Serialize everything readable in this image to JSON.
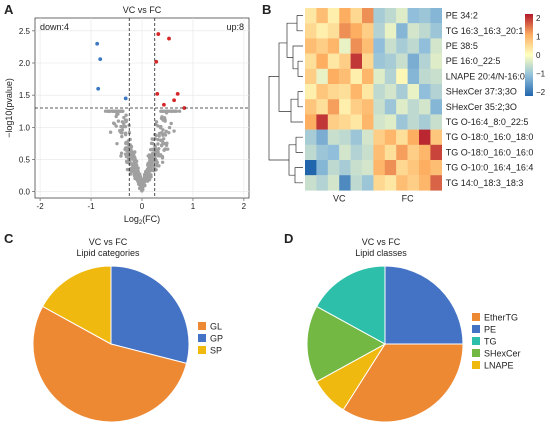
{
  "panels": [
    "A",
    "B",
    "C",
    "D"
  ],
  "chart_data": [
    {
      "type": "scatter",
      "panel": "A",
      "title": "VC vs FC",
      "xlabel": "Log2(FC)",
      "ylabel": "−log10(pvalue)",
      "xlim": [
        -2.1,
        2.1
      ],
      "ylim": [
        -0.1,
        2.7
      ],
      "xticks": [
        -2,
        -1,
        0,
        1,
        2
      ],
      "yticks": [
        0.0,
        0.5,
        1.0,
        1.5,
        2.0,
        2.5
      ],
      "grid": true,
      "annotations": {
        "down": "down:4",
        "up": "up:8"
      },
      "thresholds": {
        "vlines": [
          -0.25,
          0.25
        ],
        "hline": 1.3
      },
      "colors": {
        "down": "#3a78c2",
        "up": "#d62728",
        "ns": "#a0a0a0"
      },
      "series": [
        {
          "name": "down",
          "points": [
            [
              -0.88,
              2.3
            ],
            [
              -0.82,
              2.06
            ],
            [
              -0.86,
              1.6
            ],
            [
              -0.32,
              1.45
            ]
          ]
        },
        {
          "name": "up",
          "points": [
            [
              0.32,
              2.45
            ],
            [
              0.53,
              2.38
            ],
            [
              0.28,
              2.02
            ],
            [
              0.3,
              1.52
            ],
            [
              0.7,
              1.52
            ],
            [
              0.63,
              1.42
            ],
            [
              0.43,
              1.35
            ],
            [
              0.83,
              1.3
            ]
          ]
        }
      ]
    },
    {
      "type": "heatmap",
      "panel": "B",
      "rows": [
        "PE 34:2",
        "TG 16:3_16:3_20:1",
        "PE 38:5",
        "PE 16:0_22:5",
        "LNAPE 20:4/N-16:0",
        "SHexCer 37:3;3O",
        "SHexCer 35:2;3O",
        "TG O-16:4_8:0_22:5",
        "TG O-18:0_16:0_18:0",
        "TG O-18:0_16:0_16:0",
        "TG O-10:0_16:4_16:4",
        "TG 14:0_18:3_18:3"
      ],
      "column_groups": [
        "VC",
        "FC"
      ],
      "columns_per_group": 6,
      "legend_ticks": [
        2,
        1,
        0,
        -1,
        -2
      ],
      "values": [
        [
          0.3,
          0.8,
          0.2,
          1.0,
          0.5,
          1.2,
          -0.8,
          -0.6,
          -0.3,
          -1.0,
          -0.9,
          -1.1
        ],
        [
          0.5,
          0.2,
          0.4,
          1.2,
          1.0,
          0.6,
          -0.7,
          -0.2,
          -1.1,
          -0.4,
          -0.6,
          -0.9
        ],
        [
          0.8,
          0.6,
          0.9,
          -0.2,
          1.2,
          0.8,
          -1.0,
          -0.5,
          -0.8,
          -0.6,
          -1.0,
          -0.4
        ],
        [
          0.4,
          1.0,
          0.3,
          0.6,
          1.8,
          0.5,
          -0.9,
          -0.8,
          -0.5,
          -1.2,
          -0.7,
          -0.3
        ],
        [
          0.6,
          -0.2,
          1.0,
          0.8,
          0.2,
          0.9,
          -0.3,
          -0.7,
          0.1,
          -1.1,
          -0.6,
          -0.5
        ],
        [
          0.2,
          0.7,
          0.5,
          0.4,
          0.9,
          0.3,
          -0.6,
          -0.4,
          -0.8,
          -0.2,
          -1.0,
          -0.7
        ],
        [
          0.7,
          0.4,
          1.1,
          0.2,
          0.6,
          0.8,
          -0.5,
          -0.9,
          -0.3,
          -0.6,
          -0.4,
          -1.1
        ],
        [
          1.0,
          1.8,
          0.6,
          0.5,
          0.3,
          0.9,
          -0.4,
          -0.3,
          -0.9,
          -0.6,
          -0.8,
          -0.5
        ],
        [
          -0.8,
          -1.2,
          -0.5,
          -0.6,
          -0.9,
          -0.4,
          0.6,
          0.9,
          0.4,
          1.0,
          1.9,
          0.7
        ],
        [
          -0.6,
          -0.9,
          -1.0,
          -0.4,
          -0.7,
          -0.5,
          0.8,
          0.4,
          1.1,
          0.6,
          0.9,
          1.7
        ],
        [
          -2.0,
          -1.1,
          -0.6,
          -0.8,
          -0.5,
          -0.4,
          0.9,
          1.2,
          0.5,
          0.7,
          1.0,
          0.8
        ],
        [
          -0.5,
          -0.7,
          -0.4,
          -1.6,
          -0.6,
          -0.9,
          0.5,
          0.3,
          0.8,
          0.6,
          0.9,
          1.5
        ]
      ]
    },
    {
      "type": "pie",
      "panel": "C",
      "title": "VC vs FC",
      "subtitle": "Lipid categories",
      "slices": [
        {
          "label": "GP",
          "value": 29,
          "color": "#4472c4"
        },
        {
          "label": "GL",
          "value": 54,
          "color": "#ed8833"
        },
        {
          "label": "SP",
          "value": 17,
          "color": "#f0b90f"
        }
      ],
      "legend_order": [
        "GL",
        "GP",
        "SP"
      ],
      "legend_position": "right"
    },
    {
      "type": "pie",
      "panel": "D",
      "title": "VC vs FC",
      "subtitle": "Lipid classes",
      "slices": [
        {
          "label": "PE",
          "value": 25,
          "color": "#4472c4"
        },
        {
          "label": "EtherTG",
          "value": 34,
          "color": "#ed8833"
        },
        {
          "label": "LNAPE",
          "value": 8,
          "color": "#f0b90f"
        },
        {
          "label": "SHexCer",
          "value": 16,
          "color": "#72b843"
        },
        {
          "label": "TG",
          "value": 17,
          "color": "#2ebfaa"
        }
      ],
      "legend_order": [
        "EtherTG",
        "PE",
        "TG",
        "SHexCer",
        "LNAPE"
      ],
      "legend_position": "right"
    }
  ]
}
